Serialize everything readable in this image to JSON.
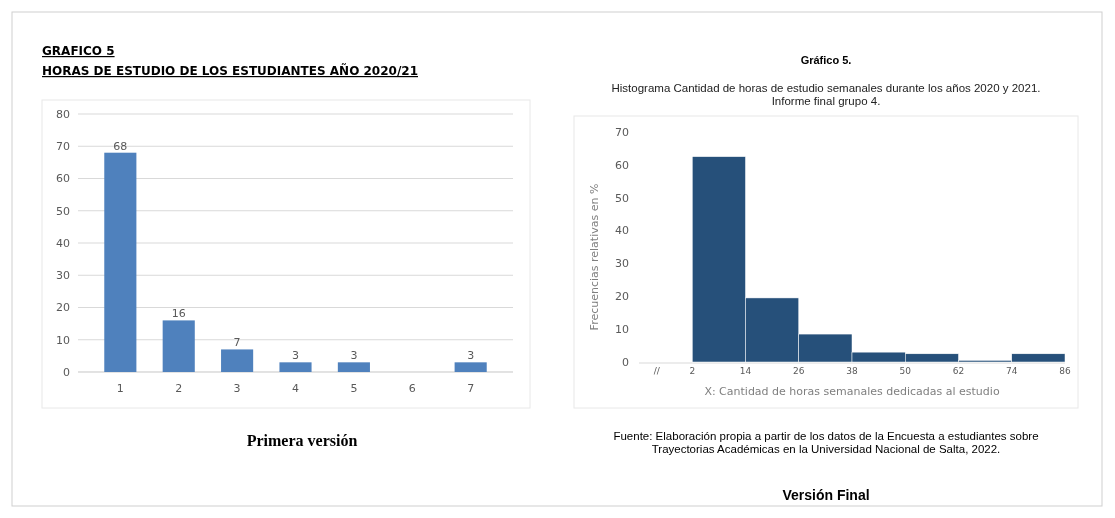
{
  "chart_data": [
    {
      "type": "bar",
      "title": "GRAFICO 5",
      "subtitle": "HORAS DE ESTUDIO DE LOS ESTUDIANTES AÑO 2020/21",
      "categories": [
        "1",
        "2",
        "3",
        "4",
        "5",
        "6",
        "7"
      ],
      "values": [
        68,
        16,
        7,
        3,
        3,
        null,
        3
      ],
      "color": "#4f81bd",
      "ylim": [
        0,
        80
      ],
      "yticks": [
        0,
        10,
        20,
        30,
        40,
        50,
        60,
        70,
        80
      ],
      "grid": "y",
      "data_labels": true,
      "annotations": [
        "Primera versión"
      ]
    },
    {
      "type": "histogram",
      "title": "Gráfico 5.",
      "subtitle": "Histograma Cantidad de horas de estudio semanales durante los años 2020 y 2021.\nInforme final grupo 4.",
      "bins": [
        2,
        14,
        26,
        38,
        50,
        62,
        74,
        86
      ],
      "values": [
        62.5,
        19.5,
        8.5,
        3,
        2.5,
        0.5,
        2.5
      ],
      "color": "#26507a",
      "xlim": [
        -10,
        86
      ],
      "xticks": [
        {
          "value": -6,
          "label": "//"
        },
        2,
        14,
        26,
        38,
        50,
        62,
        74,
        86
      ],
      "ylim": [
        0,
        70
      ],
      "yticks": [
        0,
        10,
        20,
        30,
        40,
        50,
        60,
        70
      ],
      "xlabel": "X: Cantidad de horas semanales dedicadas al estudio",
      "ylabel": "Frecuencias relativas en %",
      "annotations": [
        "Fuente: Elaboración propia a partir de los datos de la Encuesta a estudiantes sobre Trayectorias Académicas en la Universidad Nacional de Salta, 2022.",
        "Versión Final"
      ]
    }
  ]
}
